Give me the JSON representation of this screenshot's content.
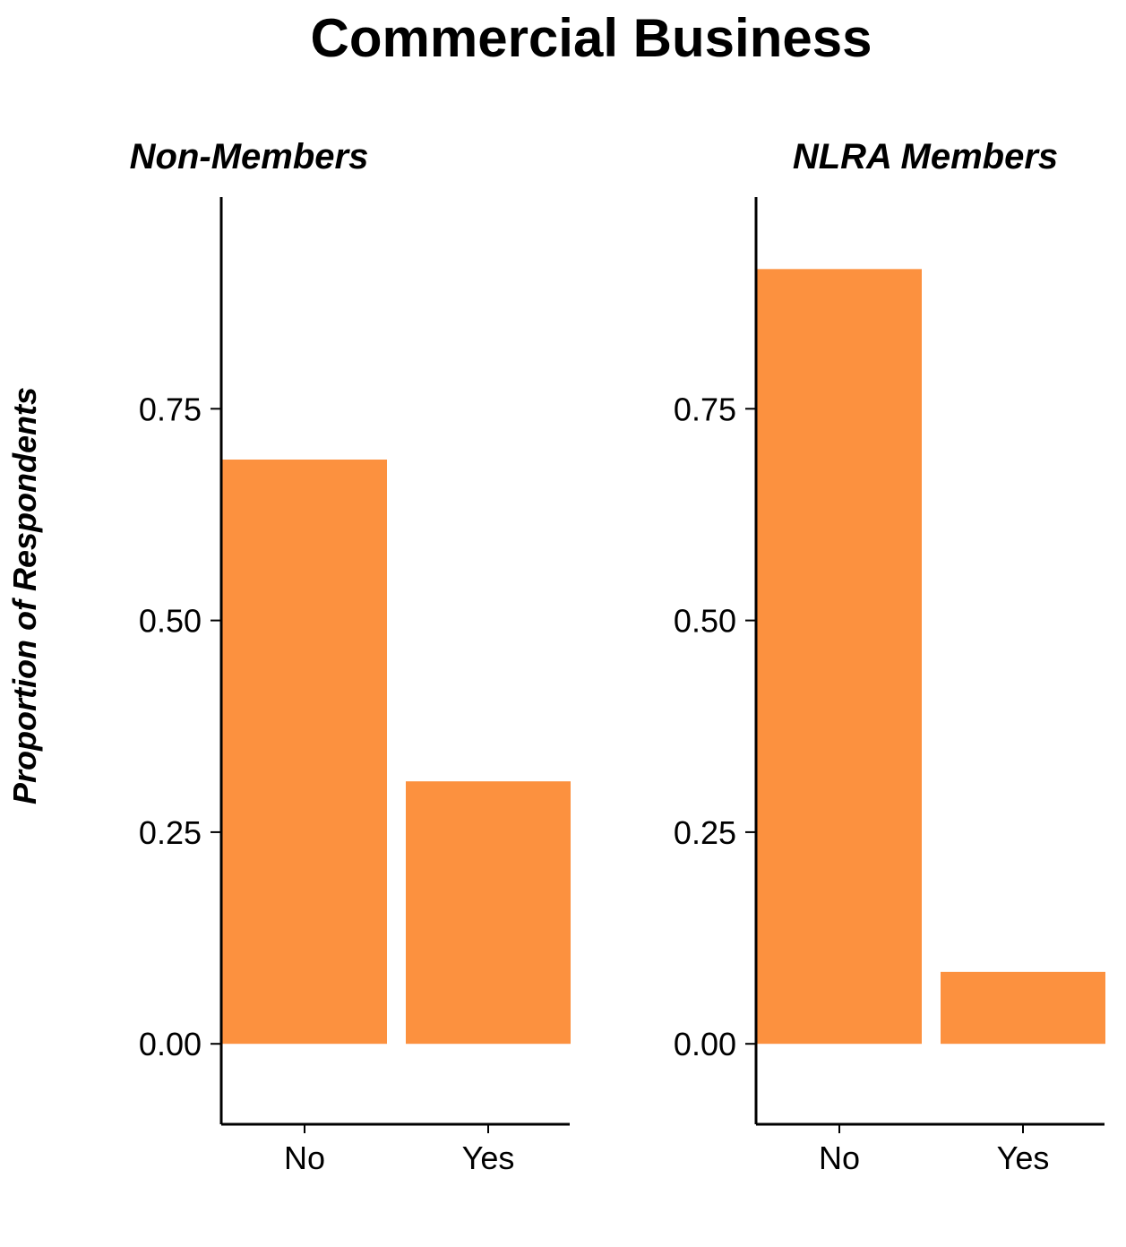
{
  "chart_data": {
    "type": "bar",
    "title": "Commercial Business",
    "ylabel": "Proportion of Respondents",
    "xlabel": "",
    "bar_color": "#FC913F",
    "grid": false,
    "ylim": [
      -0.095,
      1.0
    ],
    "yticks": [
      "0.00",
      "0.25",
      "0.50",
      "0.75"
    ],
    "categories": [
      "No",
      "Yes"
    ],
    "panels": [
      {
        "title": "Non-Members",
        "values": [
          0.69,
          0.31
        ]
      },
      {
        "title": "NLRA Members",
        "values": [
          0.915,
          0.085
        ]
      }
    ]
  }
}
